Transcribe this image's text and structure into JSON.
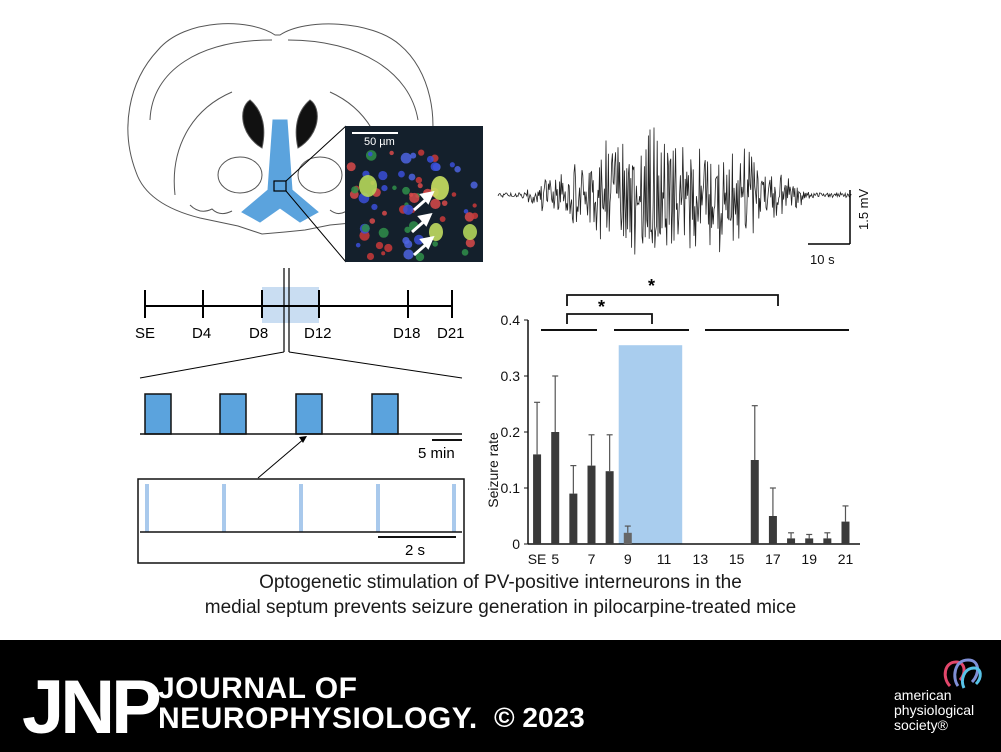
{
  "panel_a": {
    "scale_bar_label": "50 µm"
  },
  "panel_b": {
    "amplitude_scale_label": "1.5 mV",
    "time_scale_label": "10 s"
  },
  "timeline": {
    "labels": [
      "SE",
      "D4",
      "D8",
      "D12",
      "D18",
      "D21"
    ],
    "session_scale_label": "5 min",
    "pulse_scale_label": "2 s",
    "highlight_color": "#c9ddf2",
    "block_color": "#5ba3dd",
    "pulse_color": "#a9c9ec"
  },
  "chart_data": {
    "type": "bar",
    "ylabel": "Seizure rate",
    "ylim": [
      0,
      0.4
    ],
    "yticks": [
      "0",
      "0.1",
      "0.2",
      "0.3",
      "0.4"
    ],
    "xtick_labels": [
      "SE",
      "5",
      "7",
      "9",
      "11",
      "13",
      "15",
      "17",
      "19",
      "21"
    ],
    "x": [
      "SE",
      "5",
      "6",
      "7",
      "8",
      "9",
      "16",
      "17",
      "18",
      "19",
      "20",
      "21"
    ],
    "values": [
      0.16,
      0.2,
      0.09,
      0.14,
      0.13,
      0.02,
      0.15,
      0.05,
      0.01,
      0.01,
      0.01,
      0.04
    ],
    "errors": [
      0.093,
      0.1,
      0.05,
      0.055,
      0.065,
      0.012,
      0.097,
      0.05,
      0.01,
      0.007,
      0.01,
      0.028
    ],
    "stimulation_window": [
      8.5,
      12
    ],
    "stimulation_color": "#a9cdee",
    "significance_marks": [
      "*",
      "*"
    ],
    "bar_color": "#3a3a3a"
  },
  "caption": {
    "line1": "Optogenetic stimulation of PV-positive interneurons in the",
    "line2": "medial septum prevents seizure generation in pilocarpine-treated mice"
  },
  "footer": {
    "journal_abbrev": "JNP",
    "journal_name_line1": "JOURNAL OF",
    "journal_name_line2": "NEUROPHYSIOLOGY.",
    "copyright": "© 2023",
    "society_line1": "american",
    "society_line2": "physiological",
    "society_line3": "society®"
  }
}
